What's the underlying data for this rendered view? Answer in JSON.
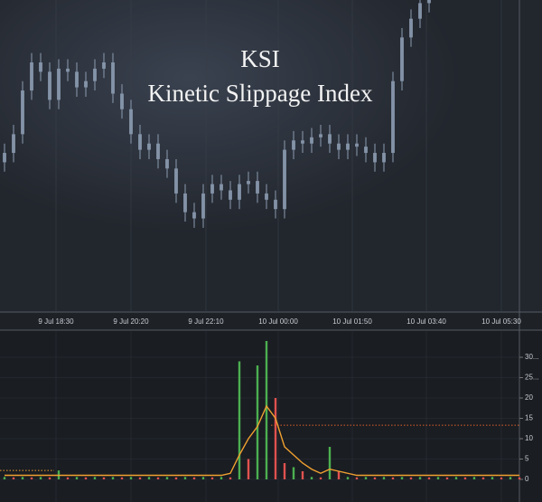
{
  "chart_data": [
    {
      "type": "candlestick",
      "title": "KSI",
      "subtitle": "Kinetic Slippage Index",
      "color": "#8b9bb0",
      "xlim": [
        -0.5,
        57
      ],
      "ylim": [
        0,
        100
      ],
      "grid": true,
      "xticks": [
        {
          "value": 5.7,
          "label": "9 Jul 18:30"
        },
        {
          "value": 14,
          "label": "9 Jul 20:20"
        },
        {
          "value": 22.3,
          "label": "9 Jul 22:10"
        },
        {
          "value": 30.3,
          "label": "10 Jul 00:00"
        },
        {
          "value": 38.5,
          "label": "10 Jul 01:50"
        },
        {
          "value": 46.7,
          "label": "10 Jul 03:40"
        },
        {
          "value": 55,
          "label": "10 Jul 05:30"
        }
      ],
      "open": [
        48,
        51,
        57,
        71,
        80,
        77,
        68,
        78,
        77,
        72,
        74,
        78,
        80,
        70,
        65,
        57,
        52,
        54,
        49,
        46,
        38,
        32,
        30,
        38,
        41,
        39,
        36,
        41,
        42,
        38,
        36,
        33,
        52,
        55,
        54,
        56,
        57,
        54,
        52,
        54,
        53,
        51,
        48,
        51,
        74,
        88,
        94,
        99
      ],
      "high": [
        54,
        60,
        74,
        83,
        83,
        80,
        81,
        81,
        80,
        77,
        81,
        83,
        83,
        73,
        68,
        60,
        57,
        57,
        52,
        49,
        41,
        35,
        41,
        44,
        44,
        42,
        44,
        45,
        45,
        41,
        39,
        55,
        58,
        58,
        59,
        60,
        60,
        57,
        57,
        57,
        56,
        54,
        54,
        77,
        91,
        97,
        102,
        103
      ],
      "low": [
        45,
        48,
        54,
        68,
        74,
        65,
        65,
        74,
        69,
        69,
        71,
        75,
        67,
        62,
        54,
        49,
        49,
        46,
        43,
        35,
        29,
        27,
        27,
        35,
        36,
        33,
        33,
        38,
        35,
        33,
        30,
        30,
        49,
        51,
        51,
        53,
        51,
        49,
        49,
        50,
        48,
        45,
        45,
        48,
        71,
        85,
        91,
        96
      ],
      "close": [
        51,
        57,
        71,
        80,
        77,
        68,
        78,
        77,
        72,
        74,
        78,
        80,
        70,
        65,
        57,
        52,
        54,
        49,
        46,
        38,
        32,
        30,
        38,
        41,
        39,
        36,
        41,
        42,
        38,
        36,
        33,
        52,
        55,
        54,
        56,
        57,
        54,
        52,
        54,
        53,
        51,
        48,
        51,
        74,
        88,
        94,
        99,
        100
      ]
    },
    {
      "type": "bar",
      "xlim": [
        -0.5,
        57
      ],
      "ylim": [
        -2,
        36
      ],
      "grid": true,
      "yticks": [
        0,
        5,
        10,
        15,
        20,
        {
          "value": 25,
          "label": "25..."
        },
        {
          "value": 30,
          "label": "30..."
        }
      ],
      "series": [
        {
          "color": "#4caf50",
          "values": [
            0.6,
            null,
            0.6,
            null,
            0.6,
            null,
            2.2,
            null,
            0.6,
            null,
            0.6,
            null,
            0.6,
            null,
            0.6,
            null,
            0.6,
            null,
            0.6,
            null,
            0.6,
            null,
            0.6,
            null,
            0.6,
            null,
            29,
            null,
            28,
            34,
            null,
            null,
            3,
            null,
            0.6,
            null,
            8,
            null,
            0.6,
            null,
            0.6,
            null,
            0.6,
            null,
            0.6,
            null,
            0.6,
            null,
            0.6,
            null,
            0.6,
            null,
            0.6,
            null,
            0.6,
            null,
            0.6,
            null
          ]
        },
        {
          "color": "#e0524f",
          "values": [
            null,
            0.5,
            null,
            0.5,
            null,
            0.5,
            null,
            0.5,
            null,
            0.5,
            null,
            0.5,
            null,
            0.5,
            null,
            0.5,
            null,
            0.5,
            null,
            0.5,
            null,
            0.5,
            null,
            0.5,
            null,
            0.5,
            null,
            5,
            null,
            null,
            20,
            4,
            null,
            2,
            null,
            0.5,
            null,
            2,
            null,
            0.5,
            null,
            0.5,
            null,
            0.5,
            null,
            0.5,
            null,
            0.5,
            null,
            0.5,
            null,
            0.5,
            null,
            0.5,
            null,
            0.5,
            null,
            0.5
          ]
        }
      ],
      "line": {
        "color": "#f0a030",
        "values": [
          1,
          1,
          1,
          1,
          1,
          1,
          1,
          1,
          1,
          1,
          1,
          1,
          1,
          1,
          1,
          1,
          1,
          1,
          1,
          1,
          1,
          1,
          1,
          1,
          1,
          1.5,
          6,
          10,
          13,
          18,
          15,
          8,
          6,
          4,
          2.5,
          1.5,
          2.5,
          2,
          1.5,
          1,
          1,
          1,
          1,
          1,
          1,
          1,
          1,
          1,
          1,
          1,
          1,
          1,
          1,
          1,
          1,
          1,
          1,
          1
        ]
      },
      "reference_lines": [
        {
          "value": 2.2,
          "xlim": [
            -0.5,
            5.5
          ],
          "color": "#f0a030"
        },
        {
          "value": 13.3,
          "xlim": [
            29.5,
            57
          ],
          "color": "#e0602a"
        }
      ]
    }
  ]
}
